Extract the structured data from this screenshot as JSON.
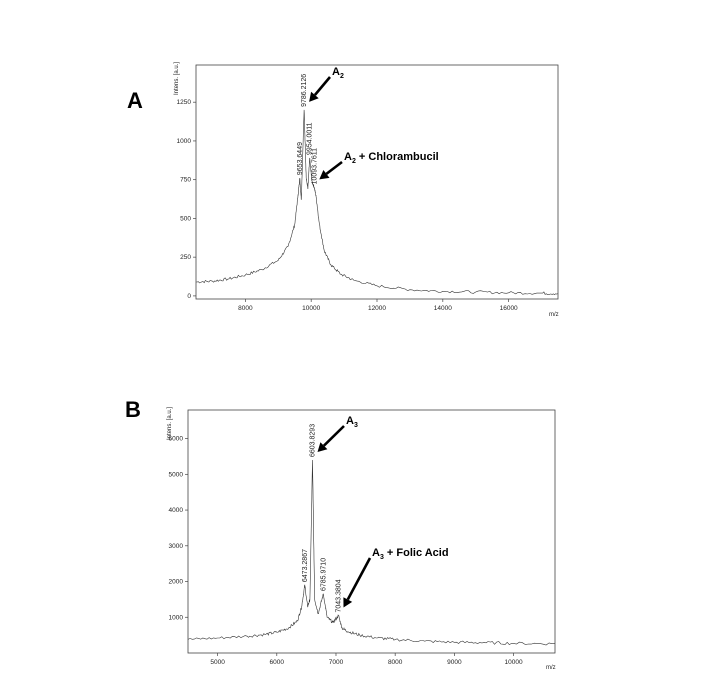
{
  "chart_data": [
    {
      "type": "line",
      "panel_label": "A",
      "xlabel": "m/z",
      "ylabel": "Intens. [a.u.]",
      "xlim": [
        6500,
        17500
      ],
      "ylim": [
        -20,
        1490
      ],
      "x_ticks": [
        8000,
        10000,
        12000,
        14000,
        16000
      ],
      "y_ticks": [
        0,
        250,
        500,
        750,
        1000,
        1250
      ],
      "grid": false,
      "series": [
        {
          "x": [
            6500,
            7000,
            7500,
            8000,
            8500,
            9000,
            9300,
            9500,
            9600,
            9653,
            9700,
            9786,
            9850,
            9900,
            9954,
            10020,
            10094,
            10150,
            10250,
            10400,
            10600,
            10900,
            11300,
            12000,
            13000,
            14000,
            15000,
            16000,
            17000,
            17500
          ],
          "y": [
            90,
            95,
            110,
            135,
            170,
            230,
            320,
            460,
            650,
            760,
            620,
            1200,
            760,
            690,
            890,
            740,
            700,
            640,
            460,
            290,
            200,
            140,
            100,
            65,
            40,
            30,
            25,
            20,
            18,
            15
          ]
        }
      ],
      "peak_labels": [
        {
          "x": 9653.6449,
          "y": 760,
          "text": "9653.6449"
        },
        {
          "x": 9786.2126,
          "y": 1200,
          "text": "9786.2126"
        },
        {
          "x": 9954.0011,
          "y": 890,
          "text": "9954.0011"
        },
        {
          "x": 10093.7611,
          "y": 700,
          "text": "10093.7611"
        }
      ],
      "annotations": [
        {
          "main": "A",
          "sub": "2",
          "rest": "",
          "target_x": 9786,
          "target_y": 1200
        },
        {
          "main": "A",
          "sub": "2",
          "rest": " + Chlorambucil",
          "target_x": 10094,
          "target_y": 700
        }
      ]
    },
    {
      "type": "line",
      "panel_label": "B",
      "xlabel": "m/z",
      "ylabel": "Intens. [a.u.]",
      "xlim": [
        4500,
        10700
      ],
      "ylim": [
        0,
        6800
      ],
      "x_ticks": [
        5000,
        6000,
        7000,
        8000,
        9000,
        10000
      ],
      "y_ticks": [
        1000,
        2000,
        3000,
        4000,
        5000,
        6000
      ],
      "grid": false,
      "series": [
        {
          "x": [
            4500,
            5000,
            5500,
            5800,
            6000,
            6200,
            6350,
            6420,
            6473,
            6520,
            6560,
            6603,
            6640,
            6700,
            6786,
            6850,
            6950,
            7043,
            7100,
            7200,
            7400,
            7700,
            8000,
            8500,
            9000,
            9500,
            10000,
            10700
          ],
          "y": [
            380,
            420,
            470,
            520,
            580,
            700,
            900,
            1300,
            1900,
            1300,
            1500,
            5400,
            1500,
            1100,
            1650,
            1000,
            850,
            1050,
            700,
            600,
            500,
            420,
            380,
            330,
            300,
            290,
            270,
            260
          ]
        }
      ],
      "peak_labels": [
        {
          "x": 6473.2867,
          "y": 1900,
          "text": "6473.2867"
        },
        {
          "x": 6603.8293,
          "y": 5400,
          "text": "6603.8293"
        },
        {
          "x": 6785.971,
          "y": 1650,
          "text": "6785.9710"
        },
        {
          "x": 7043.3804,
          "y": 1050,
          "text": "7043.3804"
        }
      ],
      "annotations": [
        {
          "main": "A",
          "sub": "3",
          "rest": "",
          "target_x": 6603,
          "target_y": 5400
        },
        {
          "main": "A",
          "sub": "3",
          "rest": " + Folic Acid",
          "target_x": 7043,
          "target_y": 1050
        }
      ]
    }
  ]
}
